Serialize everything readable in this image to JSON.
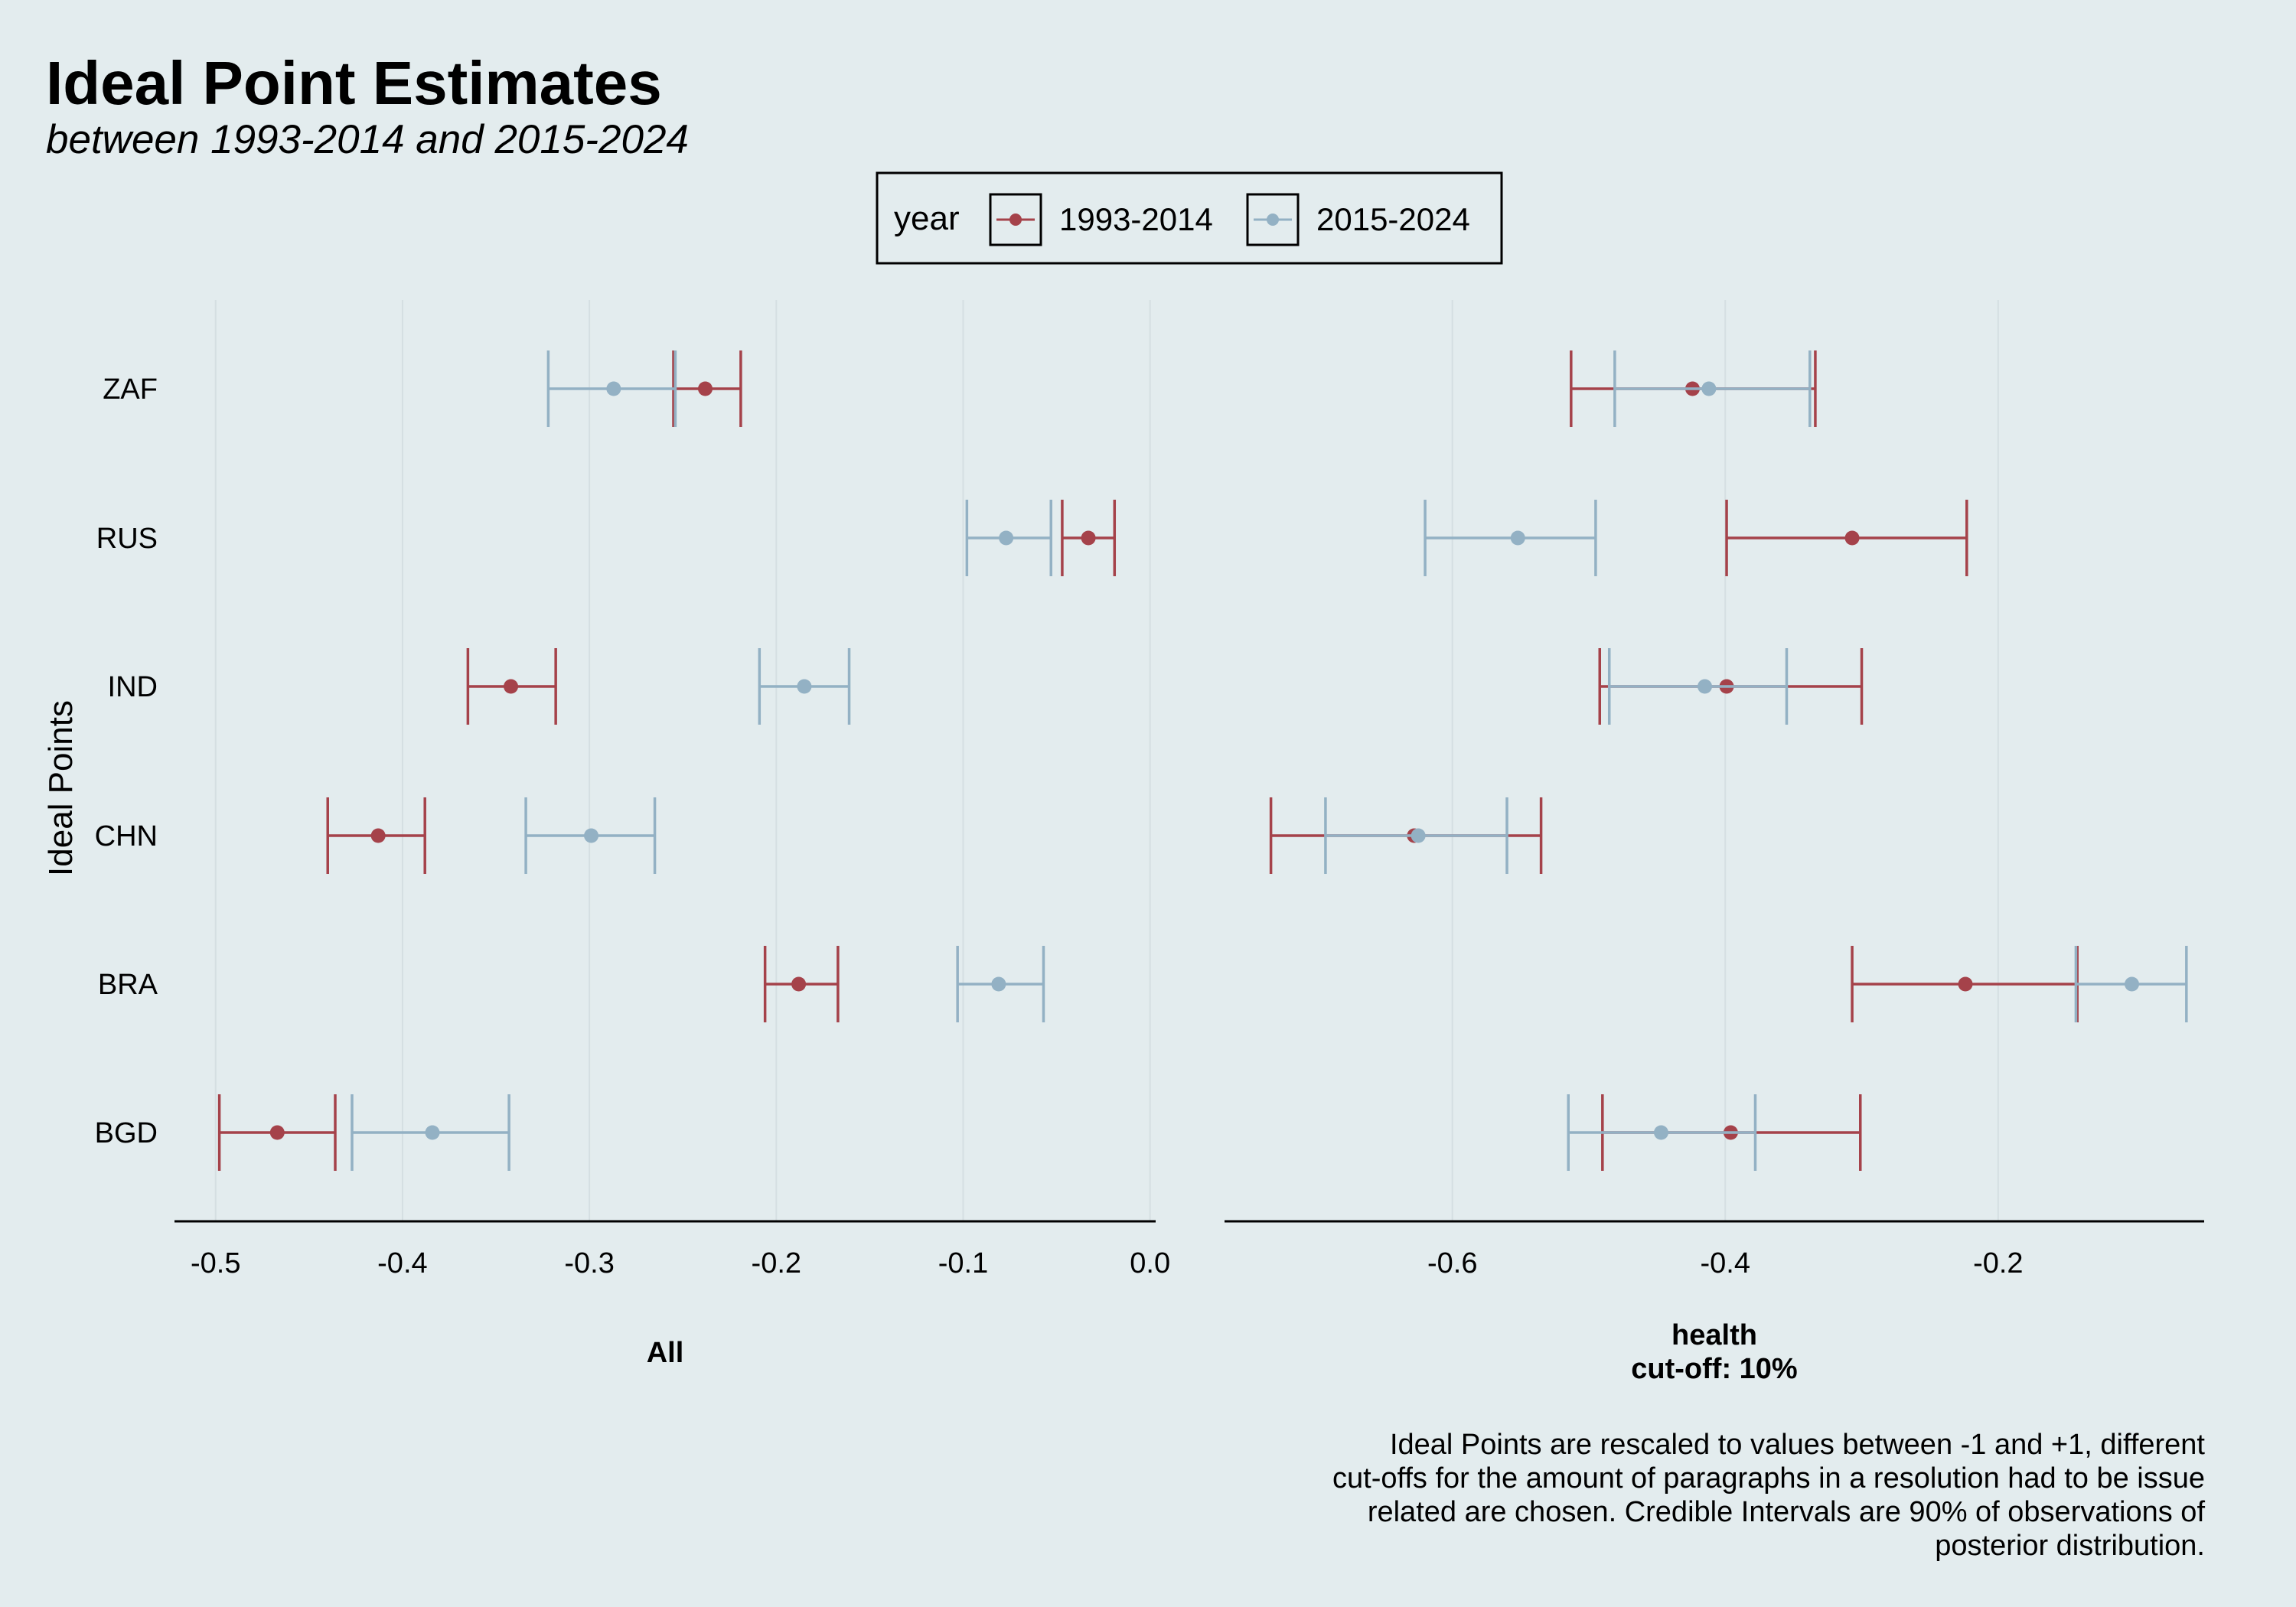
{
  "chart_data": {
    "type": "errorbar",
    "title": "Ideal Point Estimates",
    "subtitle": "between 1993-2014 and 2015-2024",
    "ylabel": "Ideal Points",
    "legend": {
      "title": "year",
      "position": "top",
      "entries": [
        {
          "label": "1993-2014",
          "color": "#a5424a"
        },
        {
          "label": "2015-2024",
          "color": "#93b1c4"
        }
      ]
    },
    "caption": [
      "Ideal Points are rescaled to values between -1 and +1, different",
      "cut-offs for the amount of paragraphs in a resolution had to be issue",
      "related are chosen. Credible Intervals are 90% of observations of",
      "posterior distribution."
    ],
    "categories": [
      "ZAF",
      "RUS",
      "IND",
      "CHN",
      "BRA",
      "BGD"
    ],
    "grid": true,
    "panels": [
      {
        "label": [
          "All"
        ],
        "xlim": [
          -0.522,
          0.003
        ],
        "xticks": [
          -0.5,
          -0.4,
          -0.3,
          -0.2,
          -0.1,
          0.0
        ],
        "xtick_labels": [
          "-0.5",
          "-0.4",
          "-0.3",
          "-0.2",
          "-0.1",
          "0.0"
        ],
        "series": [
          {
            "name": "1993-2014",
            "estimate": [
              -0.238,
              -0.033,
              -0.342,
              -0.413,
              -0.188,
              -0.467
            ],
            "lower": [
              -0.255,
              -0.047,
              -0.365,
              -0.44,
              -0.206,
              -0.498
            ],
            "upper": [
              -0.219,
              -0.019,
              -0.318,
              -0.388,
              -0.167,
              -0.436
            ]
          },
          {
            "name": "2015-2024",
            "estimate": [
              -0.287,
              -0.077,
              -0.185,
              -0.299,
              -0.081,
              -0.384
            ],
            "lower": [
              -0.322,
              -0.098,
              -0.209,
              -0.334,
              -0.103,
              -0.427
            ],
            "upper": [
              -0.254,
              -0.053,
              -0.161,
              -0.265,
              -0.057,
              -0.343
            ]
          }
        ]
      },
      {
        "label": [
          "health",
          "cut-off: 10%"
        ],
        "xlim": [
          -0.767,
          -0.049
        ],
        "xticks": [
          -0.6,
          -0.4,
          -0.2
        ],
        "xtick_labels": [
          "-0.6",
          "-0.4",
          "-0.2"
        ],
        "series": [
          {
            "name": "1993-2014",
            "estimate": [
              -0.424,
              -0.307,
              -0.399,
              -0.628,
              -0.224,
              -0.396
            ],
            "lower": [
              -0.513,
              -0.399,
              -0.492,
              -0.733,
              -0.307,
              -0.49
            ],
            "upper": [
              -0.334,
              -0.223,
              -0.3,
              -0.535,
              -0.142,
              -0.301
            ]
          },
          {
            "name": "2015-2024",
            "estimate": [
              -0.412,
              -0.552,
              -0.415,
              -0.625,
              -0.102,
              -0.447
            ],
            "lower": [
              -0.481,
              -0.62,
              -0.485,
              -0.693,
              -0.143,
              -0.515
            ],
            "upper": [
              -0.338,
              -0.495,
              -0.355,
              -0.56,
              -0.062,
              -0.378
            ]
          }
        ]
      }
    ]
  }
}
